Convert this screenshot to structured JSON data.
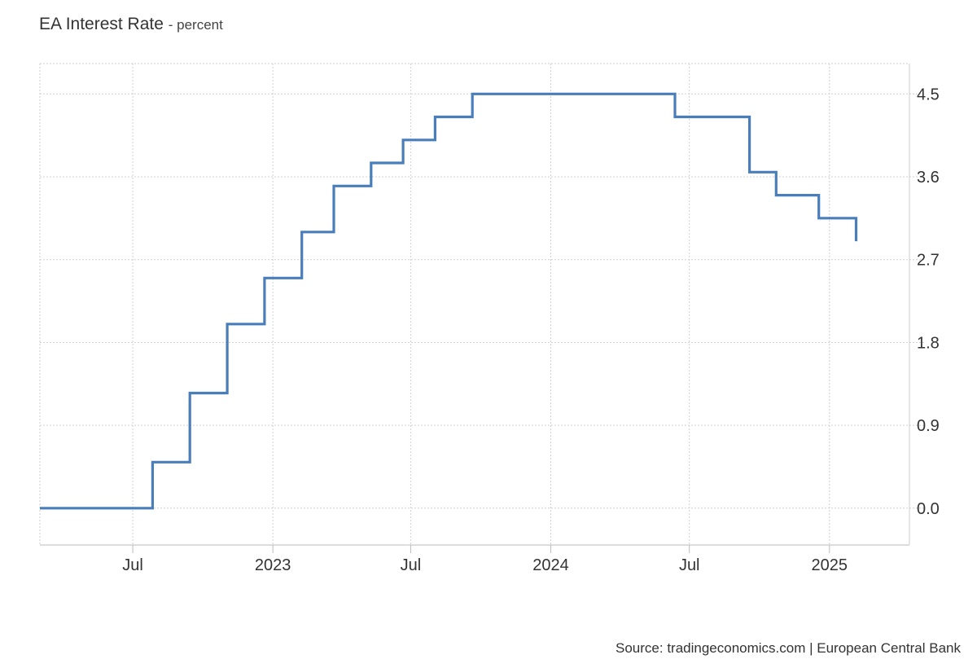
{
  "chart_data": {
    "type": "line",
    "step": true,
    "title": "EA Interest Rate",
    "subtitle": "- percent",
    "xlabel": "",
    "ylabel": "",
    "x_range": [
      "2022-03-01",
      "2025-04-16"
    ],
    "ylim": [
      -0.4,
      4.83
    ],
    "y_ticks": [
      0.0,
      0.9,
      1.8,
      2.7,
      3.6,
      4.5
    ],
    "y_tick_labels": [
      "0.0",
      "0.9",
      "1.8",
      "2.7",
      "3.6",
      "4.5"
    ],
    "x_ticks": [
      {
        "date": "2022-07-01",
        "label": "Jul"
      },
      {
        "date": "2023-01-01",
        "label": "2023"
      },
      {
        "date": "2023-07-01",
        "label": "Jul"
      },
      {
        "date": "2024-01-01",
        "label": "2024"
      },
      {
        "date": "2024-07-01",
        "label": "Jul"
      },
      {
        "date": "2025-01-01",
        "label": "2025"
      }
    ],
    "grid": true,
    "y_axis_side": "right",
    "series": [
      {
        "color": "#4a7ebb",
        "points": [
          {
            "x": "2022-03-01",
            "y": 0.0
          },
          {
            "x": "2022-07-27",
            "y": 0.5
          },
          {
            "x": "2022-09-14",
            "y": 1.25
          },
          {
            "x": "2022-11-02",
            "y": 2.0
          },
          {
            "x": "2022-12-21",
            "y": 2.5
          },
          {
            "x": "2023-02-08",
            "y": 3.0
          },
          {
            "x": "2023-03-22",
            "y": 3.5
          },
          {
            "x": "2023-05-10",
            "y": 3.75
          },
          {
            "x": "2023-06-21",
            "y": 4.0
          },
          {
            "x": "2023-08-02",
            "y": 4.25
          },
          {
            "x": "2023-09-20",
            "y": 4.5
          },
          {
            "x": "2024-06-12",
            "y": 4.25
          },
          {
            "x": "2024-09-18",
            "y": 3.65
          },
          {
            "x": "2024-10-23",
            "y": 3.4
          },
          {
            "x": "2024-12-18",
            "y": 3.15
          },
          {
            "x": "2025-02-05",
            "y": 2.9
          }
        ],
        "last_date": "2025-02-05"
      }
    ]
  },
  "source": "Source: tradingeconomics.com | European Central Bank"
}
